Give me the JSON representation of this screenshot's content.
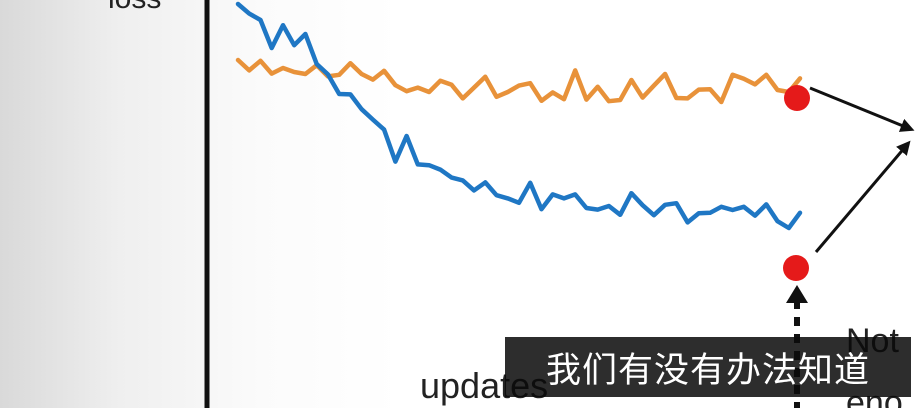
{
  "chart_data": {
    "type": "line",
    "title": "",
    "xlabel": "updates",
    "ylabel": "loss",
    "grid": false,
    "legend": "none",
    "x_range": [
      0,
      100
    ],
    "y_range": [
      0,
      100
    ],
    "series": [
      {
        "color": "#e8923a",
        "x": [
          0,
          2,
          4,
          6,
          8,
          10,
          12,
          14,
          16,
          18,
          20,
          22,
          24,
          26,
          28,
          30,
          32,
          34,
          36,
          38,
          40,
          42,
          44,
          46,
          48,
          50,
          52,
          54,
          56,
          58,
          60,
          62,
          64,
          66,
          68,
          70,
          72,
          74,
          76,
          78,
          80,
          82,
          84,
          86,
          88,
          90,
          92,
          94,
          96,
          98,
          100
        ],
        "y": [
          85,
          82.4,
          84.8,
          81.6,
          83,
          82,
          81.5,
          83.7,
          80.9,
          81.3,
          84.2,
          81.5,
          80.1,
          82.3,
          78.7,
          77.2,
          78.1,
          77,
          79.8,
          78.8,
          75.4,
          78.1,
          80.8,
          75.8,
          77,
          78.6,
          79.2,
          74.8,
          76.9,
          75.2,
          82.4,
          75.1,
          78.3,
          74.7,
          75,
          80,
          75.6,
          78.6,
          81.5,
          75.5,
          75.4,
          77.6,
          77.7,
          74.5,
          81.3,
          80.3,
          78.9,
          81.3,
          77.5,
          77,
          80.4
        ]
      },
      {
        "color": "#1f77c4",
        "x": [
          0,
          2,
          4,
          6,
          8,
          10,
          12,
          14,
          16,
          18,
          20,
          22,
          24,
          26,
          28,
          30,
          32,
          34,
          36,
          38,
          40,
          42,
          44,
          46,
          48,
          50,
          52,
          54,
          56,
          58,
          60,
          62,
          64,
          66,
          68,
          70,
          72,
          74,
          76,
          78,
          80,
          82,
          84,
          86,
          88,
          90,
          92,
          94,
          96,
          98,
          100
        ],
        "y": [
          99,
          96.6,
          95,
          88,
          93.7,
          88.7,
          91.5,
          84,
          81.4,
          76.5,
          76.4,
          72.7,
          70.1,
          67.6,
          59.6,
          66,
          58.9,
          58.7,
          57.6,
          55.6,
          54.9,
          52.4,
          54.4,
          51.2,
          50.4,
          49.3,
          54.3,
          47.7,
          51.4,
          50.4,
          51.4,
          48,
          47.6,
          48.5,
          46.3,
          51.7,
          48.7,
          46.2,
          48.8,
          49.2,
          44.4,
          46.7,
          46.8,
          48.3,
          47.5,
          48.3,
          46.1,
          48.9,
          44.7,
          43,
          46.8
        ]
      }
    ],
    "annotations": [
      {
        "text": "Not",
        "color": "#222222"
      },
      {
        "text": "eno",
        "color": "#222222"
      }
    ]
  },
  "caption": {
    "text": "我们有没有办法知道"
  },
  "colors": {
    "axis": "#111111",
    "marker": "#e51a1a",
    "arrow": "#111111"
  }
}
